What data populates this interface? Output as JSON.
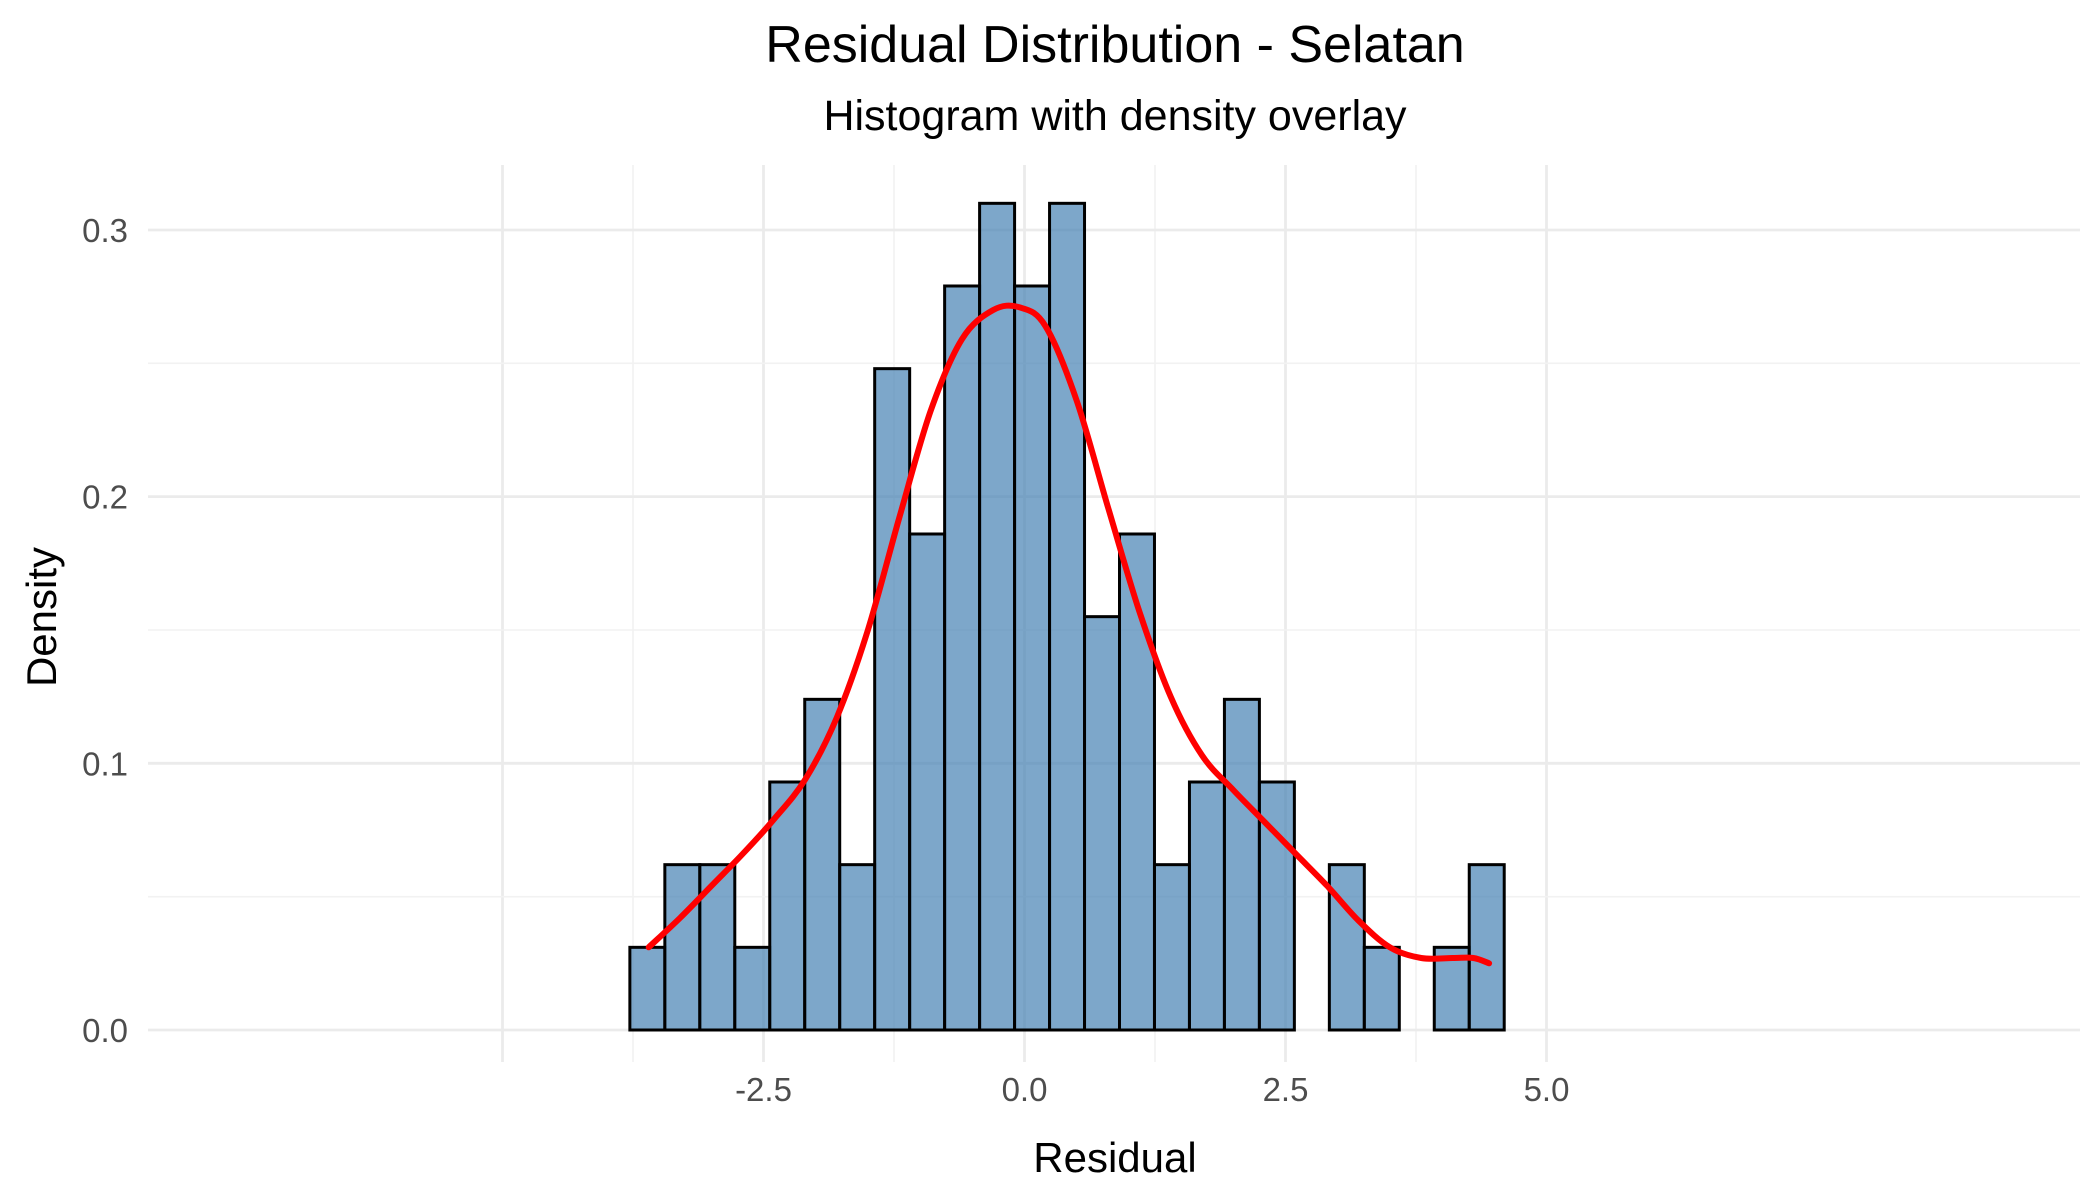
{
  "chart_data": {
    "type": "bar",
    "title": "Residual Distribution - Selatan",
    "subtitle": "Histogram with density overlay",
    "xlabel": "Residual",
    "ylabel": "Density",
    "xlim": [
      -3.9,
      5.0
    ],
    "ylim": [
      0,
      0.32
    ],
    "x_ticks": [
      {
        "value": -2.5,
        "label": "-2.5"
      },
      {
        "value": 0.0,
        "label": "0.0"
      },
      {
        "value": 2.5,
        "label": "2.5"
      },
      {
        "value": 5.0,
        "label": "5.0"
      }
    ],
    "y_ticks": [
      {
        "value": 0.0,
        "label": "0.0"
      },
      {
        "value": 0.1,
        "label": "0.1"
      },
      {
        "value": 0.2,
        "label": "0.2"
      },
      {
        "value": 0.3,
        "label": "0.3"
      }
    ],
    "grid": true,
    "bin_width": 0.335,
    "bins": [
      {
        "x0": -3.78,
        "x1": -3.445,
        "density": 0.031
      },
      {
        "x0": -3.445,
        "x1": -3.11,
        "density": 0.062
      },
      {
        "x0": -3.11,
        "x1": -2.775,
        "density": 0.062
      },
      {
        "x0": -2.775,
        "x1": -2.44,
        "density": 0.031
      },
      {
        "x0": -2.44,
        "x1": -2.105,
        "density": 0.093
      },
      {
        "x0": -2.105,
        "x1": -1.77,
        "density": 0.124
      },
      {
        "x0": -1.77,
        "x1": -1.435,
        "density": 0.062
      },
      {
        "x0": -1.435,
        "x1": -1.1,
        "density": 0.248
      },
      {
        "x0": -1.1,
        "x1": -0.765,
        "density": 0.186
      },
      {
        "x0": -0.765,
        "x1": -0.43,
        "density": 0.279
      },
      {
        "x0": -0.43,
        "x1": -0.095,
        "density": 0.31
      },
      {
        "x0": -0.095,
        "x1": 0.24,
        "density": 0.279
      },
      {
        "x0": 0.24,
        "x1": 0.575,
        "density": 0.31
      },
      {
        "x0": 0.575,
        "x1": 0.91,
        "density": 0.155
      },
      {
        "x0": 0.91,
        "x1": 1.245,
        "density": 0.186
      },
      {
        "x0": 1.245,
        "x1": 1.58,
        "density": 0.062
      },
      {
        "x0": 1.58,
        "x1": 1.915,
        "density": 0.093
      },
      {
        "x0": 1.915,
        "x1": 2.25,
        "density": 0.124
      },
      {
        "x0": 2.25,
        "x1": 2.585,
        "density": 0.093
      },
      {
        "x0": 2.585,
        "x1": 2.92,
        "density": 0.0
      },
      {
        "x0": 2.92,
        "x1": 3.255,
        "density": 0.062
      },
      {
        "x0": 3.255,
        "x1": 3.59,
        "density": 0.031
      },
      {
        "x0": 3.59,
        "x1": 3.925,
        "density": 0.0
      },
      {
        "x0": 3.925,
        "x1": 4.26,
        "density": 0.031
      },
      {
        "x0": 4.26,
        "x1": 4.595,
        "density": 0.062
      }
    ],
    "density_curve": {
      "color": "#ff0000",
      "points": [
        [
          -3.6,
          0.031
        ],
        [
          -3.3,
          0.042
        ],
        [
          -3.0,
          0.054
        ],
        [
          -2.7,
          0.066
        ],
        [
          -2.4,
          0.079
        ],
        [
          -2.1,
          0.094
        ],
        [
          -1.8,
          0.117
        ],
        [
          -1.5,
          0.15
        ],
        [
          -1.2,
          0.192
        ],
        [
          -0.9,
          0.232
        ],
        [
          -0.6,
          0.259
        ],
        [
          -0.3,
          0.27
        ],
        [
          -0.05,
          0.271
        ],
        [
          0.2,
          0.264
        ],
        [
          0.5,
          0.236
        ],
        [
          0.8,
          0.196
        ],
        [
          1.1,
          0.157
        ],
        [
          1.4,
          0.125
        ],
        [
          1.7,
          0.103
        ],
        [
          2.0,
          0.09
        ],
        [
          2.3,
          0.078
        ],
        [
          2.6,
          0.066
        ],
        [
          2.9,
          0.054
        ],
        [
          3.2,
          0.041
        ],
        [
          3.5,
          0.031
        ],
        [
          3.8,
          0.027
        ],
        [
          4.1,
          0.027
        ],
        [
          4.3,
          0.027
        ],
        [
          4.45,
          0.025
        ]
      ]
    },
    "colors": {
      "bar_fill": "#4682b4",
      "bar_outline": "#000000",
      "density_line": "#ff0000",
      "grid": "#ebebeb"
    }
  }
}
